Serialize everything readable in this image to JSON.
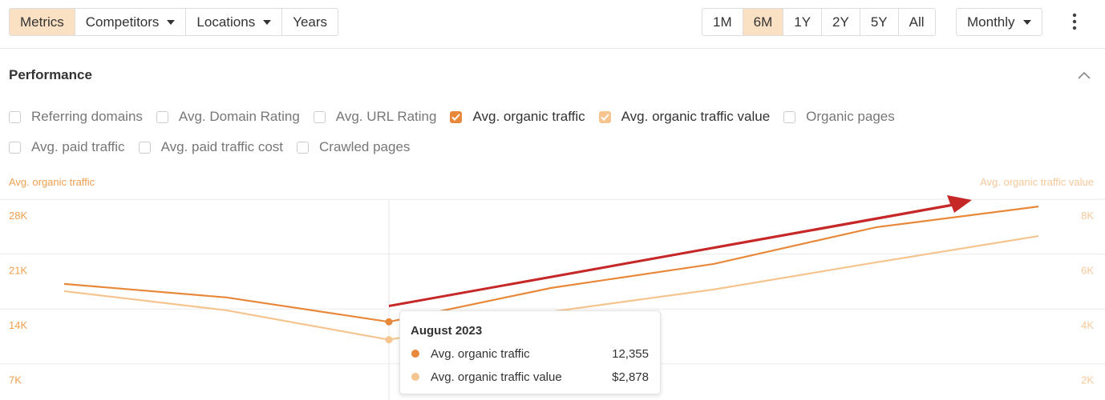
{
  "toolbar": {
    "left_buttons": [
      {
        "label": "Metrics",
        "active": true,
        "dropdown": false
      },
      {
        "label": "Competitors",
        "active": false,
        "dropdown": true
      },
      {
        "label": "Locations",
        "active": false,
        "dropdown": true
      },
      {
        "label": "Years",
        "active": false,
        "dropdown": false
      }
    ],
    "range_buttons": [
      {
        "label": "1M",
        "active": false
      },
      {
        "label": "6M",
        "active": true
      },
      {
        "label": "1Y",
        "active": false
      },
      {
        "label": "2Y",
        "active": false
      },
      {
        "label": "5Y",
        "active": false
      },
      {
        "label": "All",
        "active": false
      }
    ],
    "interval": "Monthly"
  },
  "panel": {
    "title": "Performance",
    "options": [
      {
        "label": "Referring domains",
        "checked": false
      },
      {
        "label": "Avg. Domain Rating",
        "checked": false
      },
      {
        "label": "Avg. URL Rating",
        "checked": false
      },
      {
        "label": "Avg. organic traffic",
        "checked": true,
        "color": "#e8883a"
      },
      {
        "label": "Avg. organic traffic value",
        "checked": true,
        "color": "#f5c48f"
      },
      {
        "label": "Organic pages",
        "checked": false
      },
      {
        "label": "Avg. paid traffic",
        "checked": false
      },
      {
        "label": "Avg. paid traffic cost",
        "checked": false
      },
      {
        "label": "Crawled pages",
        "checked": false
      }
    ]
  },
  "chart_data": {
    "type": "line",
    "ylabel": "Avg. organic traffic",
    "y2label": "Avg. organic traffic value",
    "categories": [
      null,
      null,
      "August 2023",
      null,
      null,
      null,
      null
    ],
    "ylim": [
      3500,
      29750
    ],
    "yticks": [
      {
        "value": 7000,
        "label": "7K"
      },
      {
        "value": 14000,
        "label": "14K"
      },
      {
        "value": 21000,
        "label": "21K"
      },
      {
        "value": 28000,
        "label": "28K"
      }
    ],
    "y2lim": [
      1000,
      8500
    ],
    "y2ticks": [
      {
        "value": 2000,
        "label": "2K"
      },
      {
        "value": 4000,
        "label": "4K"
      },
      {
        "value": 6000,
        "label": "6K"
      },
      {
        "value": 8000,
        "label": "8K"
      }
    ],
    "grid": true,
    "series": [
      {
        "name": "Avg. organic traffic",
        "color": "#e8883a",
        "values": [
          17200,
          15470,
          12355,
          16690,
          19750,
          24430,
          27080
        ],
        "value_labels": [
          null,
          null,
          "12,355",
          null,
          null,
          null,
          null
        ]
      },
      {
        "name": "Avg. organic traffic value",
        "color": "#f5c48f",
        "axis": "y2",
        "values": [
          4650,
          3950,
          2878,
          3900,
          4710,
          5700,
          6660
        ],
        "value_labels": [
          null,
          null,
          "$2,878",
          null,
          null,
          null,
          null
        ]
      }
    ]
  }
}
